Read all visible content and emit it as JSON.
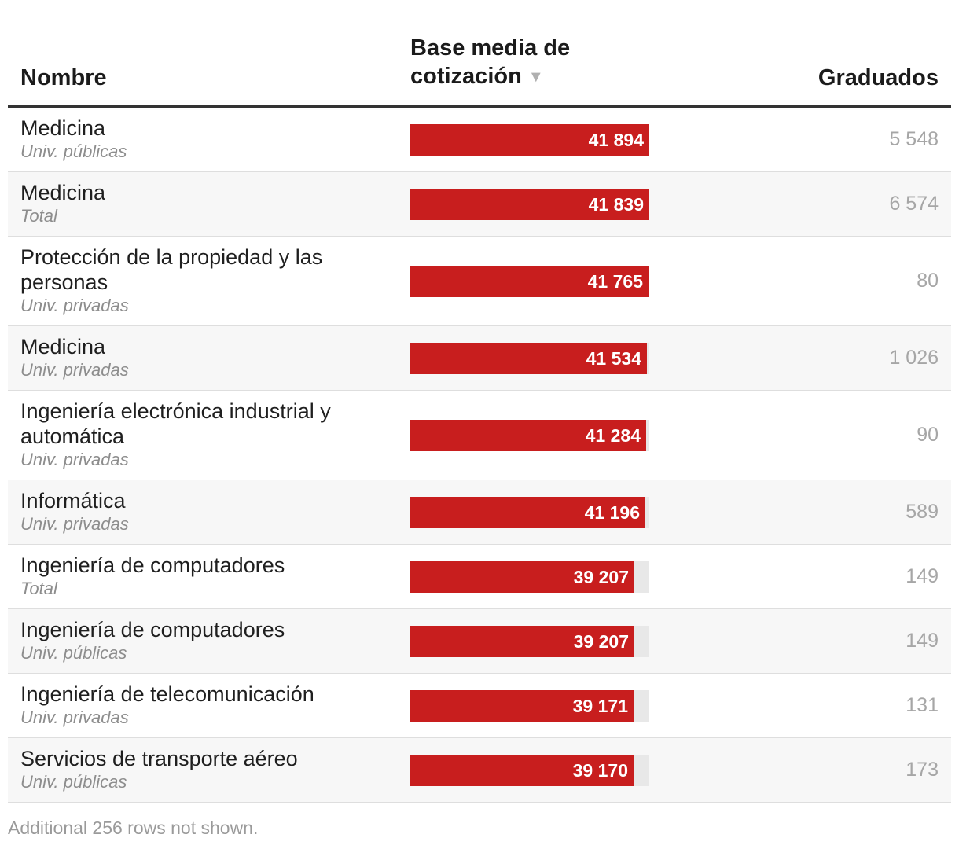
{
  "headers": {
    "name": "Nombre",
    "base": "Base media de cotización",
    "graduates": "Graduados"
  },
  "sort_icon": "sort-descending-icon",
  "colors": {
    "bar": "#c81e1e",
    "track": "#e8e8e8"
  },
  "chart_data": {
    "type": "table",
    "bar_max": 41894,
    "rows": [
      {
        "name": "Medicina",
        "type": "Univ. públicas",
        "base": 41894,
        "base_label": "41 894",
        "graduates": "5 548"
      },
      {
        "name": "Medicina",
        "type": "Total",
        "base": 41839,
        "base_label": "41 839",
        "graduates": "6 574"
      },
      {
        "name": "Protección de la propiedad y las personas",
        "type": "Univ. privadas",
        "base": 41765,
        "base_label": "41 765",
        "graduates": "80"
      },
      {
        "name": "Medicina",
        "type": "Univ. privadas",
        "base": 41534,
        "base_label": "41 534",
        "graduates": "1 026"
      },
      {
        "name": "Ingeniería electrónica industrial y automática",
        "type": "Univ. privadas",
        "base": 41284,
        "base_label": "41 284",
        "graduates": "90"
      },
      {
        "name": "Informática",
        "type": "Univ. privadas",
        "base": 41196,
        "base_label": "41 196",
        "graduates": "589"
      },
      {
        "name": "Ingeniería de computadores",
        "type": "Total",
        "base": 39207,
        "base_label": "39 207",
        "graduates": "149"
      },
      {
        "name": "Ingeniería de computadores",
        "type": "Univ. públicas",
        "base": 39207,
        "base_label": "39 207",
        "graduates": "149"
      },
      {
        "name": "Ingeniería de telecomunicación",
        "type": "Univ. privadas",
        "base": 39171,
        "base_label": "39 171",
        "graduates": "131"
      },
      {
        "name": "Servicios de transporte aéreo",
        "type": "Univ. públicas",
        "base": 39170,
        "base_label": "39 170",
        "graduates": "173"
      }
    ]
  },
  "footer": "Additional 256 rows not shown."
}
